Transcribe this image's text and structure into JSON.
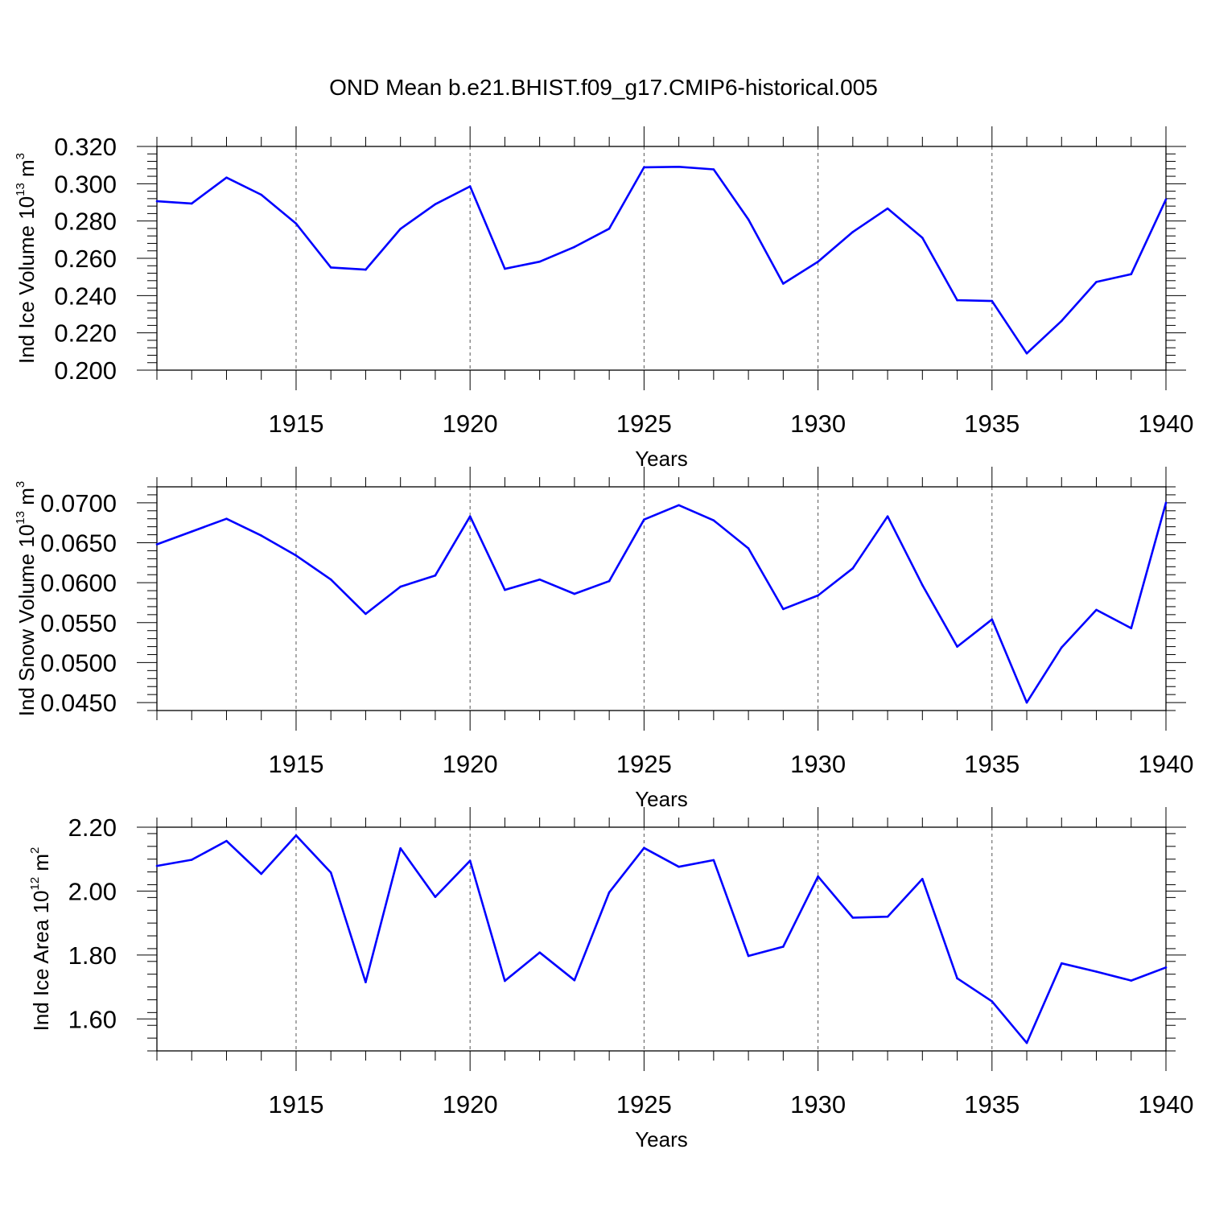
{
  "title": "OND Mean b.e21.BHIST.f09_g17.CMIP6-historical.005",
  "colors": {
    "line": "#0000ff",
    "axis": "#000000",
    "grid": "#555555"
  },
  "chart_data": [
    {
      "type": "line",
      "name": "ice-volume",
      "ylabel": {
        "main": "Ind Ice Volume 10",
        "exp": "13",
        "unit": " m",
        "unit_exp": "3"
      },
      "xlabel": "Years",
      "xlim": [
        1911,
        1940
      ],
      "ylim": [
        0.2,
        0.32
      ],
      "ytick_values": [
        0.2,
        0.22,
        0.24,
        0.26,
        0.28,
        0.3,
        0.32
      ],
      "ytick_labels": [
        "0.200",
        "0.220",
        "0.240",
        "0.260",
        "0.280",
        "0.300",
        "0.320"
      ],
      "xtick_values": [
        1915,
        1920,
        1925,
        1930,
        1935,
        1940
      ],
      "xtick_labels": [
        "1915",
        "1920",
        "1925",
        "1930",
        "1935",
        "1940"
      ],
      "x": [
        1911,
        1912,
        1913,
        1914,
        1915,
        1916,
        1917,
        1918,
        1919,
        1920,
        1921,
        1922,
        1923,
        1924,
        1925,
        1926,
        1927,
        1928,
        1929,
        1930,
        1931,
        1932,
        1933,
        1934,
        1935,
        1936,
        1937,
        1938,
        1939,
        1940
      ],
      "values": [
        0.2906,
        0.2894,
        0.3033,
        0.2941,
        0.2786,
        0.2551,
        0.2539,
        0.2758,
        0.289,
        0.2986,
        0.2544,
        0.2582,
        0.2661,
        0.2759,
        0.3088,
        0.3091,
        0.3077,
        0.2808,
        0.2464,
        0.2582,
        0.2741,
        0.2867,
        0.271,
        0.2375,
        0.2371,
        0.209,
        0.2264,
        0.2473,
        0.2515,
        0.2916
      ]
    },
    {
      "type": "line",
      "name": "snow-volume",
      "ylabel": {
        "main": "Ind Snow Volume 10",
        "exp": "13",
        "unit": " m",
        "unit_exp": "3"
      },
      "xlabel": "Years",
      "xlim": [
        1911,
        1940
      ],
      "ylim": [
        0.044,
        0.072
      ],
      "ytick_values": [
        0.045,
        0.05,
        0.055,
        0.06,
        0.065,
        0.07
      ],
      "ytick_labels": [
        "0.0450",
        "0.0500",
        "0.0550",
        "0.0600",
        "0.0650",
        "0.0700"
      ],
      "xtick_values": [
        1915,
        1920,
        1925,
        1930,
        1935,
        1940
      ],
      "xtick_labels": [
        "1915",
        "1920",
        "1925",
        "1930",
        "1935",
        "1940"
      ],
      "x": [
        1911,
        1912,
        1913,
        1914,
        1915,
        1916,
        1917,
        1918,
        1919,
        1920,
        1921,
        1922,
        1923,
        1924,
        1925,
        1926,
        1927,
        1928,
        1929,
        1930,
        1931,
        1932,
        1933,
        1934,
        1935,
        1936,
        1937,
        1938,
        1939,
        1940
      ],
      "values": [
        0.0648,
        0.0664,
        0.068,
        0.0659,
        0.0634,
        0.0604,
        0.0561,
        0.0595,
        0.0609,
        0.0683,
        0.0591,
        0.0604,
        0.0586,
        0.0602,
        0.0679,
        0.0697,
        0.0678,
        0.0643,
        0.0567,
        0.0584,
        0.0618,
        0.0683,
        0.0597,
        0.052,
        0.0554,
        0.045,
        0.0519,
        0.0566,
        0.0543,
        0.07
      ]
    },
    {
      "type": "line",
      "name": "ice-area",
      "ylabel": {
        "main": "Ind Ice Area 10",
        "exp": "12",
        "unit": " m",
        "unit_exp": "2"
      },
      "xlabel": "Years",
      "xlim": [
        1911,
        1940
      ],
      "ylim": [
        1.5,
        2.2
      ],
      "ytick_values": [
        1.6,
        1.8,
        2.0,
        2.2
      ],
      "ytick_labels": [
        "1.60",
        "1.80",
        "2.00",
        "2.20"
      ],
      "xtick_values": [
        1915,
        1920,
        1925,
        1930,
        1935,
        1940
      ],
      "xtick_labels": [
        "1915",
        "1920",
        "1925",
        "1930",
        "1935",
        "1940"
      ],
      "x": [
        1911,
        1912,
        1913,
        1914,
        1915,
        1916,
        1917,
        1918,
        1919,
        1920,
        1921,
        1922,
        1923,
        1924,
        1925,
        1926,
        1927,
        1928,
        1929,
        1930,
        1931,
        1932,
        1933,
        1934,
        1935,
        1936,
        1937,
        1938,
        1939,
        1940
      ],
      "values": [
        2.079,
        2.098,
        2.157,
        2.054,
        2.174,
        2.058,
        1.715,
        2.134,
        1.982,
        2.095,
        1.719,
        1.808,
        1.721,
        1.996,
        2.135,
        2.076,
        2.097,
        1.797,
        1.826,
        2.046,
        1.917,
        1.92,
        2.038,
        1.727,
        1.655,
        1.525,
        1.774,
        1.748,
        1.72,
        1.761
      ]
    }
  ]
}
